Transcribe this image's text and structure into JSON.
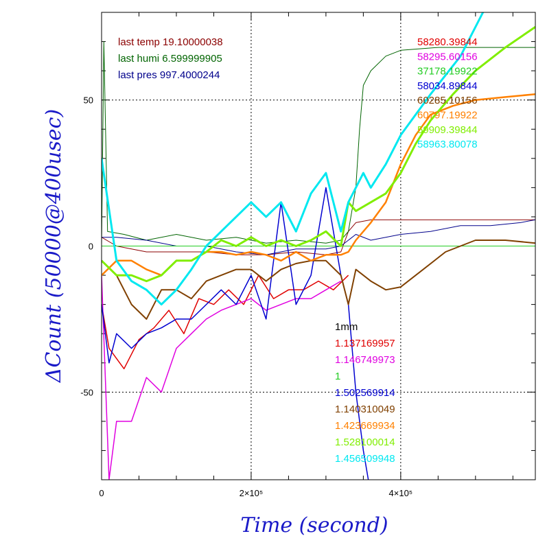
{
  "chart_data": {
    "type": "line",
    "title": "",
    "xlabel": "Time (second)",
    "ylabel": "ΔCount (50000@400usec)",
    "xlim": [
      0,
      580000
    ],
    "ylim": [
      -80,
      80
    ],
    "grid": true,
    "x_ticks": [
      {
        "value": 0,
        "label": "0"
      },
      {
        "value": 200000,
        "label": "2×10⁵"
      },
      {
        "value": 400000,
        "label": "4×10⁵"
      }
    ],
    "y_ticks": [
      {
        "value": -50,
        "label": "-50"
      },
      {
        "value": 0,
        "label": "0"
      },
      {
        "value": 50,
        "label": "50"
      }
    ],
    "annotations_left": [
      {
        "text": "last temp 19.10000038",
        "color": "#8b0000"
      },
      {
        "text": "last humi 6.599999905",
        "color": "#006400"
      },
      {
        "text": "last pres 997.4000244",
        "color": "#00008b"
      }
    ],
    "annotations_right": [
      {
        "text": "58280.39844",
        "color": "#e00000"
      },
      {
        "text": "58295.60156",
        "color": "#e000e0"
      },
      {
        "text": "37178.19922",
        "color": "#22cc22"
      },
      {
        "text": "58034.89844",
        "color": "#0000d0"
      },
      {
        "text": "60285.10156",
        "color": "#804000"
      },
      {
        "text": "60797.19922",
        "color": "#ff8000"
      },
      {
        "text": "59909.39844",
        "color": "#80ee00"
      },
      {
        "text": "58963.80078",
        "color": "#00e8f0"
      }
    ],
    "annotations_middle": [
      {
        "text": "1mm",
        "color": "#000000"
      },
      {
        "text": "1.137169957",
        "color": "#e00000"
      },
      {
        "text": "1.146749973",
        "color": "#e000e0"
      },
      {
        "text": "1",
        "color": "#22cc22"
      },
      {
        "text": "1.502569914",
        "color": "#0000d0"
      },
      {
        "text": "1.140310049",
        "color": "#804000"
      },
      {
        "text": "1.423669934",
        "color": "#ff8000"
      },
      {
        "text": "1.528100014",
        "color": "#80ee00"
      },
      {
        "text": "1.456509948",
        "color": "#00e8f0"
      }
    ],
    "series": [
      {
        "color": "#8b0000",
        "width": 1,
        "x": [
          0,
          20000,
          60000,
          100000,
          140000,
          180000,
          220000,
          260000,
          300000,
          320000,
          330000,
          340000,
          360000,
          400000,
          450000,
          500000,
          550000,
          580000
        ],
        "y": [
          3,
          0,
          -2,
          -2,
          -2,
          -3,
          -3,
          -2,
          -3,
          -2,
          5,
          8,
          9,
          9,
          9,
          9,
          9,
          9
        ]
      },
      {
        "color": "#006400",
        "width": 1,
        "x": [
          0,
          3000,
          8000,
          30000,
          60000,
          100000,
          140000,
          180000,
          220000,
          260000,
          300000,
          320000,
          330000,
          340000,
          345000,
          350000,
          360000,
          380000,
          400000,
          450000,
          500000,
          550000,
          580000
        ],
        "y": [
          0,
          70,
          5,
          4,
          2,
          4,
          2,
          3,
          1,
          2,
          1,
          2,
          5,
          20,
          40,
          55,
          60,
          65,
          67,
          68,
          68,
          68,
          68
        ]
      },
      {
        "color": "#00008b",
        "width": 1,
        "x": [
          0,
          20000,
          60000,
          100000,
          140000,
          180000,
          220000,
          260000,
          300000,
          320000,
          340000,
          360000,
          400000,
          440000,
          480000,
          520000,
          560000,
          580000
        ],
        "y": [
          3,
          3,
          2,
          0,
          0,
          -2,
          -3,
          -1,
          -1,
          0,
          4,
          2,
          4,
          5,
          7,
          7,
          8,
          9
        ]
      },
      {
        "color": "#22cc22",
        "width": 1,
        "x": [
          0,
          580000
        ],
        "y": [
          0,
          0
        ]
      },
      {
        "color": "#e00000",
        "width": 1.5,
        "x": [
          0,
          10000,
          30000,
          50000,
          70000,
          90000,
          110000,
          130000,
          150000,
          170000,
          190000,
          210000,
          230000,
          250000,
          270000,
          290000,
          310000,
          330000
        ],
        "y": [
          -20,
          -35,
          -42,
          -32,
          -28,
          -22,
          -30,
          -18,
          -20,
          -15,
          -20,
          -10,
          -18,
          -15,
          -15,
          -12,
          -15,
          -10
        ]
      },
      {
        "color": "#e000e0",
        "width": 1.5,
        "x": [
          0,
          10000,
          20000,
          40000,
          60000,
          80000,
          100000,
          120000,
          140000,
          160000,
          180000,
          200000,
          220000,
          240000,
          260000,
          280000,
          300000,
          320000
        ],
        "y": [
          -10,
          -80,
          -60,
          -60,
          -45,
          -50,
          -35,
          -30,
          -25,
          -22,
          -20,
          -18,
          -22,
          -20,
          -18,
          -18,
          -15,
          -12
        ]
      },
      {
        "color": "#0000d0",
        "width": 1.5,
        "x": [
          0,
          10000,
          20000,
          40000,
          60000,
          80000,
          100000,
          120000,
          140000,
          160000,
          180000,
          200000,
          220000,
          240000,
          260000,
          280000,
          300000,
          320000,
          330000,
          340000,
          350000,
          360000
        ],
        "y": [
          -20,
          -40,
          -30,
          -35,
          -30,
          -28,
          -25,
          -25,
          -20,
          -15,
          -20,
          -10,
          -25,
          15,
          -20,
          -10,
          20,
          -10,
          -20,
          -50,
          -70,
          -85
        ]
      },
      {
        "color": "#804000",
        "width": 2,
        "x": [
          0,
          20000,
          40000,
          60000,
          80000,
          100000,
          120000,
          140000,
          160000,
          180000,
          200000,
          220000,
          240000,
          260000,
          280000,
          300000,
          320000,
          330000,
          340000,
          360000,
          380000,
          400000,
          430000,
          460000,
          500000,
          540000,
          580000
        ],
        "y": [
          -5,
          -10,
          -20,
          -25,
          -15,
          -15,
          -18,
          -12,
          -10,
          -8,
          -8,
          -12,
          -8,
          -6,
          -5,
          -5,
          -10,
          -20,
          -8,
          -12,
          -15,
          -14,
          -8,
          -2,
          2,
          2,
          1
        ]
      },
      {
        "color": "#ff8000",
        "width": 2.5,
        "x": [
          0,
          20000,
          40000,
          60000,
          80000,
          100000,
          120000,
          140000,
          160000,
          180000,
          200000,
          220000,
          240000,
          260000,
          280000,
          300000,
          320000,
          330000,
          340000,
          360000,
          380000,
          400000,
          420000,
          440000,
          470000,
          500000,
          540000,
          580000
        ],
        "y": [
          -10,
          -5,
          -5,
          -8,
          -10,
          -5,
          -5,
          -2,
          -2,
          -3,
          -2,
          -3,
          -5,
          -2,
          -5,
          -3,
          -3,
          -2,
          2,
          8,
          15,
          28,
          38,
          45,
          48,
          50,
          51,
          52
        ]
      },
      {
        "color": "#80ee00",
        "width": 3,
        "x": [
          0,
          20000,
          40000,
          60000,
          80000,
          100000,
          120000,
          140000,
          160000,
          180000,
          200000,
          220000,
          240000,
          260000,
          280000,
          300000,
          320000,
          330000,
          340000,
          360000,
          380000,
          400000,
          420000,
          440000,
          470000,
          500000,
          540000,
          580000
        ],
        "y": [
          -5,
          -10,
          -10,
          -12,
          -10,
          -5,
          -5,
          -2,
          2,
          0,
          3,
          0,
          2,
          0,
          2,
          5,
          0,
          15,
          12,
          15,
          18,
          25,
          35,
          43,
          52,
          60,
          68,
          75
        ]
      },
      {
        "color": "#00e8f0",
        "width": 3,
        "x": [
          0,
          20000,
          40000,
          60000,
          80000,
          100000,
          120000,
          140000,
          160000,
          180000,
          200000,
          220000,
          240000,
          260000,
          280000,
          300000,
          320000,
          330000,
          340000,
          350000,
          360000,
          380000,
          400000,
          440000,
          480000,
          510000,
          550000
        ],
        "y": [
          30,
          -5,
          -12,
          -15,
          -20,
          -15,
          -8,
          0,
          5,
          10,
          15,
          10,
          15,
          5,
          18,
          25,
          5,
          15,
          20,
          25,
          20,
          28,
          38,
          52,
          65,
          80,
          90
        ]
      }
    ]
  }
}
